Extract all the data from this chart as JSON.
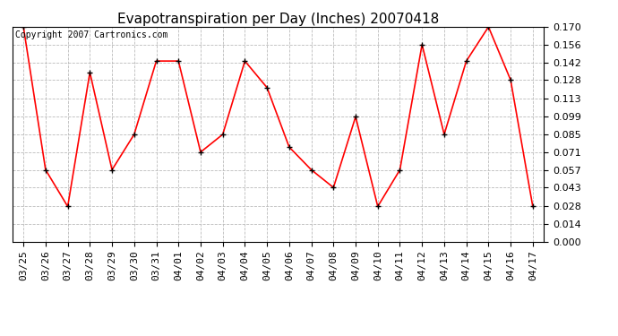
{
  "title": "Evapotranspiration per Day (Inches) 20070418",
  "copyright_text": "Copyright 2007 Cartronics.com",
  "dates": [
    "03/25",
    "03/26",
    "03/27",
    "03/28",
    "03/29",
    "03/30",
    "03/31",
    "04/01",
    "04/02",
    "04/03",
    "04/04",
    "04/05",
    "04/06",
    "04/07",
    "04/08",
    "04/09",
    "04/10",
    "04/11",
    "04/12",
    "04/13",
    "04/14",
    "04/15",
    "04/16",
    "04/17"
  ],
  "values": [
    0.17,
    0.057,
    0.028,
    0.134,
    0.057,
    0.085,
    0.143,
    0.143,
    0.071,
    0.085,
    0.143,
    0.122,
    0.075,
    0.057,
    0.043,
    0.099,
    0.028,
    0.057,
    0.156,
    0.085,
    0.143,
    0.17,
    0.128,
    0.028
  ],
  "ylim": [
    0.0,
    0.17
  ],
  "yticks": [
    0.0,
    0.014,
    0.028,
    0.043,
    0.057,
    0.071,
    0.085,
    0.099,
    0.113,
    0.128,
    0.142,
    0.156,
    0.17
  ],
  "line_color": "#ff0000",
  "marker_color": "#000000",
  "background_color": "#ffffff",
  "grid_color": "#bbbbbb",
  "title_fontsize": 11,
  "copyright_fontsize": 7,
  "tick_fontsize": 8,
  "fig_width": 6.9,
  "fig_height": 3.75,
  "dpi": 100
}
